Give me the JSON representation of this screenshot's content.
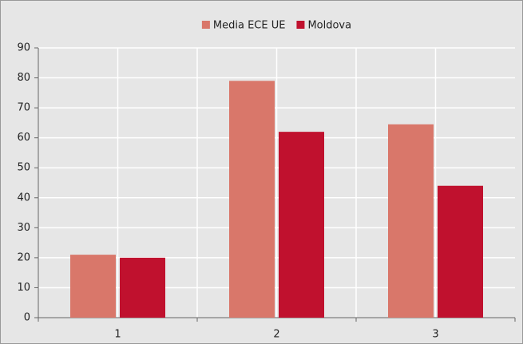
{
  "chart_data": {
    "type": "bar",
    "categories": [
      "1",
      "2",
      "3"
    ],
    "series": [
      {
        "name": "Media ECE UE",
        "color": "#d9776a",
        "values": [
          21,
          79,
          64.5
        ]
      },
      {
        "name": "Moldova",
        "color": "#c0112e",
        "values": [
          20,
          62,
          44
        ]
      }
    ],
    "ylim": [
      0,
      90
    ],
    "yticks": [
      0,
      10,
      20,
      30,
      40,
      50,
      60,
      70,
      80,
      90
    ],
    "grid": true,
    "legend": "top"
  }
}
